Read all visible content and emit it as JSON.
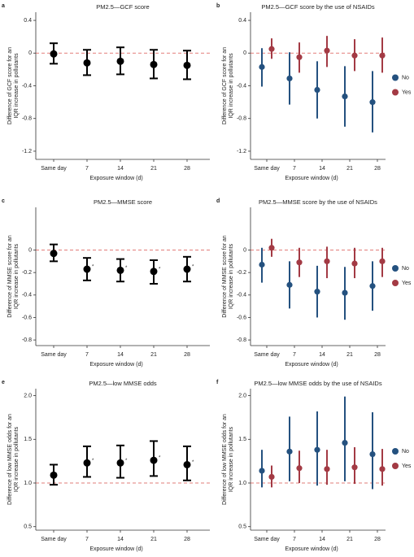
{
  "chart_data": [
    {
      "type": "errorbar",
      "label": "a",
      "title": "PM2.5—GCF score",
      "ylabel": [
        "Difference of GCF score for an",
        "IQR increase in pollutants"
      ],
      "xlabel": "Exposure window (d)",
      "categories": [
        "Same day",
        "7",
        "14",
        "21",
        "28"
      ],
      "color": "#000000",
      "values": [
        -0.01,
        -0.12,
        -0.1,
        -0.14,
        -0.15
      ],
      "lower": [
        -0.13,
        -0.27,
        -0.26,
        -0.31,
        -0.32
      ],
      "upper": [
        0.12,
        0.04,
        0.07,
        0.04,
        0.03
      ],
      "ylim": [
        -1.3,
        0.5
      ],
      "yticks": [
        0.4,
        0,
        -0.4,
        -0.8,
        -1.2
      ],
      "ref_line": 0,
      "ref_color": "#d9534f"
    },
    {
      "type": "errorbar",
      "label": "b",
      "title": "PM2.5—GCF score by the use of NSAIDs",
      "ylabel": [
        "Difference of GCF score for an",
        "IQR increase in pollutants"
      ],
      "xlabel": "Exposure window (d)",
      "categories": [
        "Same day",
        "7",
        "14",
        "21",
        "28"
      ],
      "series": [
        {
          "name": "No",
          "color": "#24517f",
          "values": [
            -0.17,
            -0.31,
            -0.45,
            -0.53,
            -0.6
          ],
          "lower": [
            -0.41,
            -0.63,
            -0.8,
            -0.9,
            -0.97
          ],
          "upper": [
            0.06,
            0.01,
            -0.1,
            -0.16,
            -0.22
          ]
        },
        {
          "name": "Yes",
          "color": "#a33a44",
          "values": [
            0.05,
            -0.05,
            0.03,
            -0.03,
            -0.03
          ],
          "lower": [
            -0.07,
            -0.24,
            -0.17,
            -0.22,
            -0.24
          ],
          "upper": [
            0.18,
            0.13,
            0.21,
            0.17,
            0.19
          ]
        }
      ],
      "ylim": [
        -1.3,
        0.5
      ],
      "yticks": [
        0.4,
        0,
        -0.4,
        -0.8,
        -1.2
      ],
      "ref_line": 0,
      "ref_color": "#d9534f",
      "legend": "right"
    },
    {
      "type": "errorbar",
      "label": "c",
      "title": "PM2.5—MMSE score",
      "ylabel": [
        "Difference of MMSE score for an",
        "IQR increase in pollutants"
      ],
      "xlabel": "Exposure window (d)",
      "categories": [
        "Same day",
        "7",
        "14",
        "21",
        "28"
      ],
      "color": "#000000",
      "values": [
        -0.03,
        -0.17,
        -0.18,
        -0.19,
        -0.17
      ],
      "lower": [
        -0.1,
        -0.27,
        -0.28,
        -0.3,
        -0.28
      ],
      "upper": [
        0.05,
        -0.07,
        -0.08,
        -0.09,
        -0.06
      ],
      "annotations": [
        null,
        "*",
        "*",
        "*",
        "*"
      ],
      "ylim": [
        -0.85,
        0.38
      ],
      "yticks": [
        0,
        -0.2,
        -0.4,
        -0.6,
        -0.8
      ],
      "ref_line": 0,
      "ref_color": "#d9534f"
    },
    {
      "type": "errorbar",
      "label": "d",
      "title": "PM2.5—MMSE score by the use of NSAIDs",
      "ylabel": [
        "Difference of MMSE score for an",
        "IQR increase in pollutants"
      ],
      "xlabel": "Exposure window (d)",
      "categories": [
        "Same day",
        "7",
        "14",
        "21",
        "28"
      ],
      "series": [
        {
          "name": "No",
          "color": "#24517f",
          "values": [
            -0.13,
            -0.31,
            -0.37,
            -0.38,
            -0.32
          ],
          "lower": [
            -0.29,
            -0.52,
            -0.6,
            -0.62,
            -0.54
          ],
          "upper": [
            0.02,
            -0.1,
            -0.14,
            -0.15,
            -0.1
          ]
        },
        {
          "name": "Yes",
          "color": "#a33a44",
          "values": [
            0.02,
            -0.11,
            -0.1,
            -0.12,
            -0.1
          ],
          "lower": [
            -0.06,
            -0.24,
            -0.25,
            -0.25,
            -0.24
          ],
          "upper": [
            0.1,
            0.02,
            0.03,
            0.02,
            0.02
          ]
        }
      ],
      "ylim": [
        -0.85,
        0.38
      ],
      "yticks": [
        0,
        -0.2,
        -0.4,
        -0.6,
        -0.8
      ],
      "ref_line": 0,
      "ref_color": "#d9534f",
      "legend": "right"
    },
    {
      "type": "errorbar",
      "label": "e",
      "title": "PM2.5—low MMSE odds",
      "ylabel": [
        "Difference of low MMSE odds for an",
        "IQR increase in pollutants"
      ],
      "xlabel": "Exposure window (d)",
      "categories": [
        "Same day",
        "7",
        "14",
        "21",
        "28"
      ],
      "color": "#000000",
      "values": [
        1.09,
        1.23,
        1.23,
        1.26,
        1.21
      ],
      "lower": [
        0.98,
        1.07,
        1.06,
        1.08,
        1.03
      ],
      "upper": [
        1.21,
        1.42,
        1.43,
        1.48,
        1.42
      ],
      "annotations": [
        null,
        "*",
        "*",
        "*",
        "*"
      ],
      "ylim": [
        0.46,
        2.08
      ],
      "yticks": [
        {
          "value": 2,
          "label": "2.0"
        },
        1.5,
        {
          "value": 1,
          "label": "1.0"
        },
        0.5
      ],
      "ref_line": 1,
      "ref_color": "#d9534f"
    },
    {
      "type": "errorbar",
      "label": "f",
      "title": "PM2.5—low MMSE odds by the use of NSAIDs",
      "ylabel": [
        "Difference of low MMSE odds for an",
        "IQR increase in pollutants"
      ],
      "xlabel": "Exposure window (d)",
      "categories": [
        "Same day",
        "7",
        "14",
        "21",
        "28"
      ],
      "series": [
        {
          "name": "No",
          "color": "#24517f",
          "values": [
            1.14,
            1.36,
            1.38,
            1.46,
            1.33
          ],
          "lower": [
            0.95,
            1.02,
            0.97,
            1.02,
            0.93
          ],
          "upper": [
            1.38,
            1.76,
            1.82,
            1.99,
            1.81
          ]
        },
        {
          "name": "Yes",
          "color": "#a33a44",
          "values": [
            1.07,
            1.17,
            1.16,
            1.18,
            1.16
          ],
          "lower": [
            0.95,
            1.0,
            0.98,
            0.99,
            0.97
          ],
          "upper": [
            1.2,
            1.37,
            1.38,
            1.41,
            1.39
          ]
        }
      ],
      "ylim": [
        0.46,
        2.08
      ],
      "yticks": [
        {
          "value": 2,
          "label": "2.0"
        },
        1.5,
        {
          "value": 1,
          "label": "1.0"
        },
        0.5
      ],
      "ref_line": 1,
      "ref_color": "#d9534f",
      "legend": "right"
    }
  ]
}
